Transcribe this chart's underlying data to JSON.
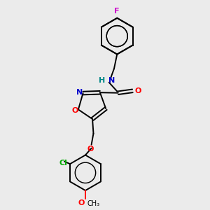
{
  "background_color": "#ebebeb",
  "bond_color": "#000000",
  "atom_colors": {
    "N": "#0000cc",
    "O": "#ff0000",
    "F": "#cc00cc",
    "Cl": "#00aa00",
    "C": "#000000",
    "H": "#008888"
  },
  "figsize": [
    3.0,
    3.0
  ],
  "dpi": 100
}
